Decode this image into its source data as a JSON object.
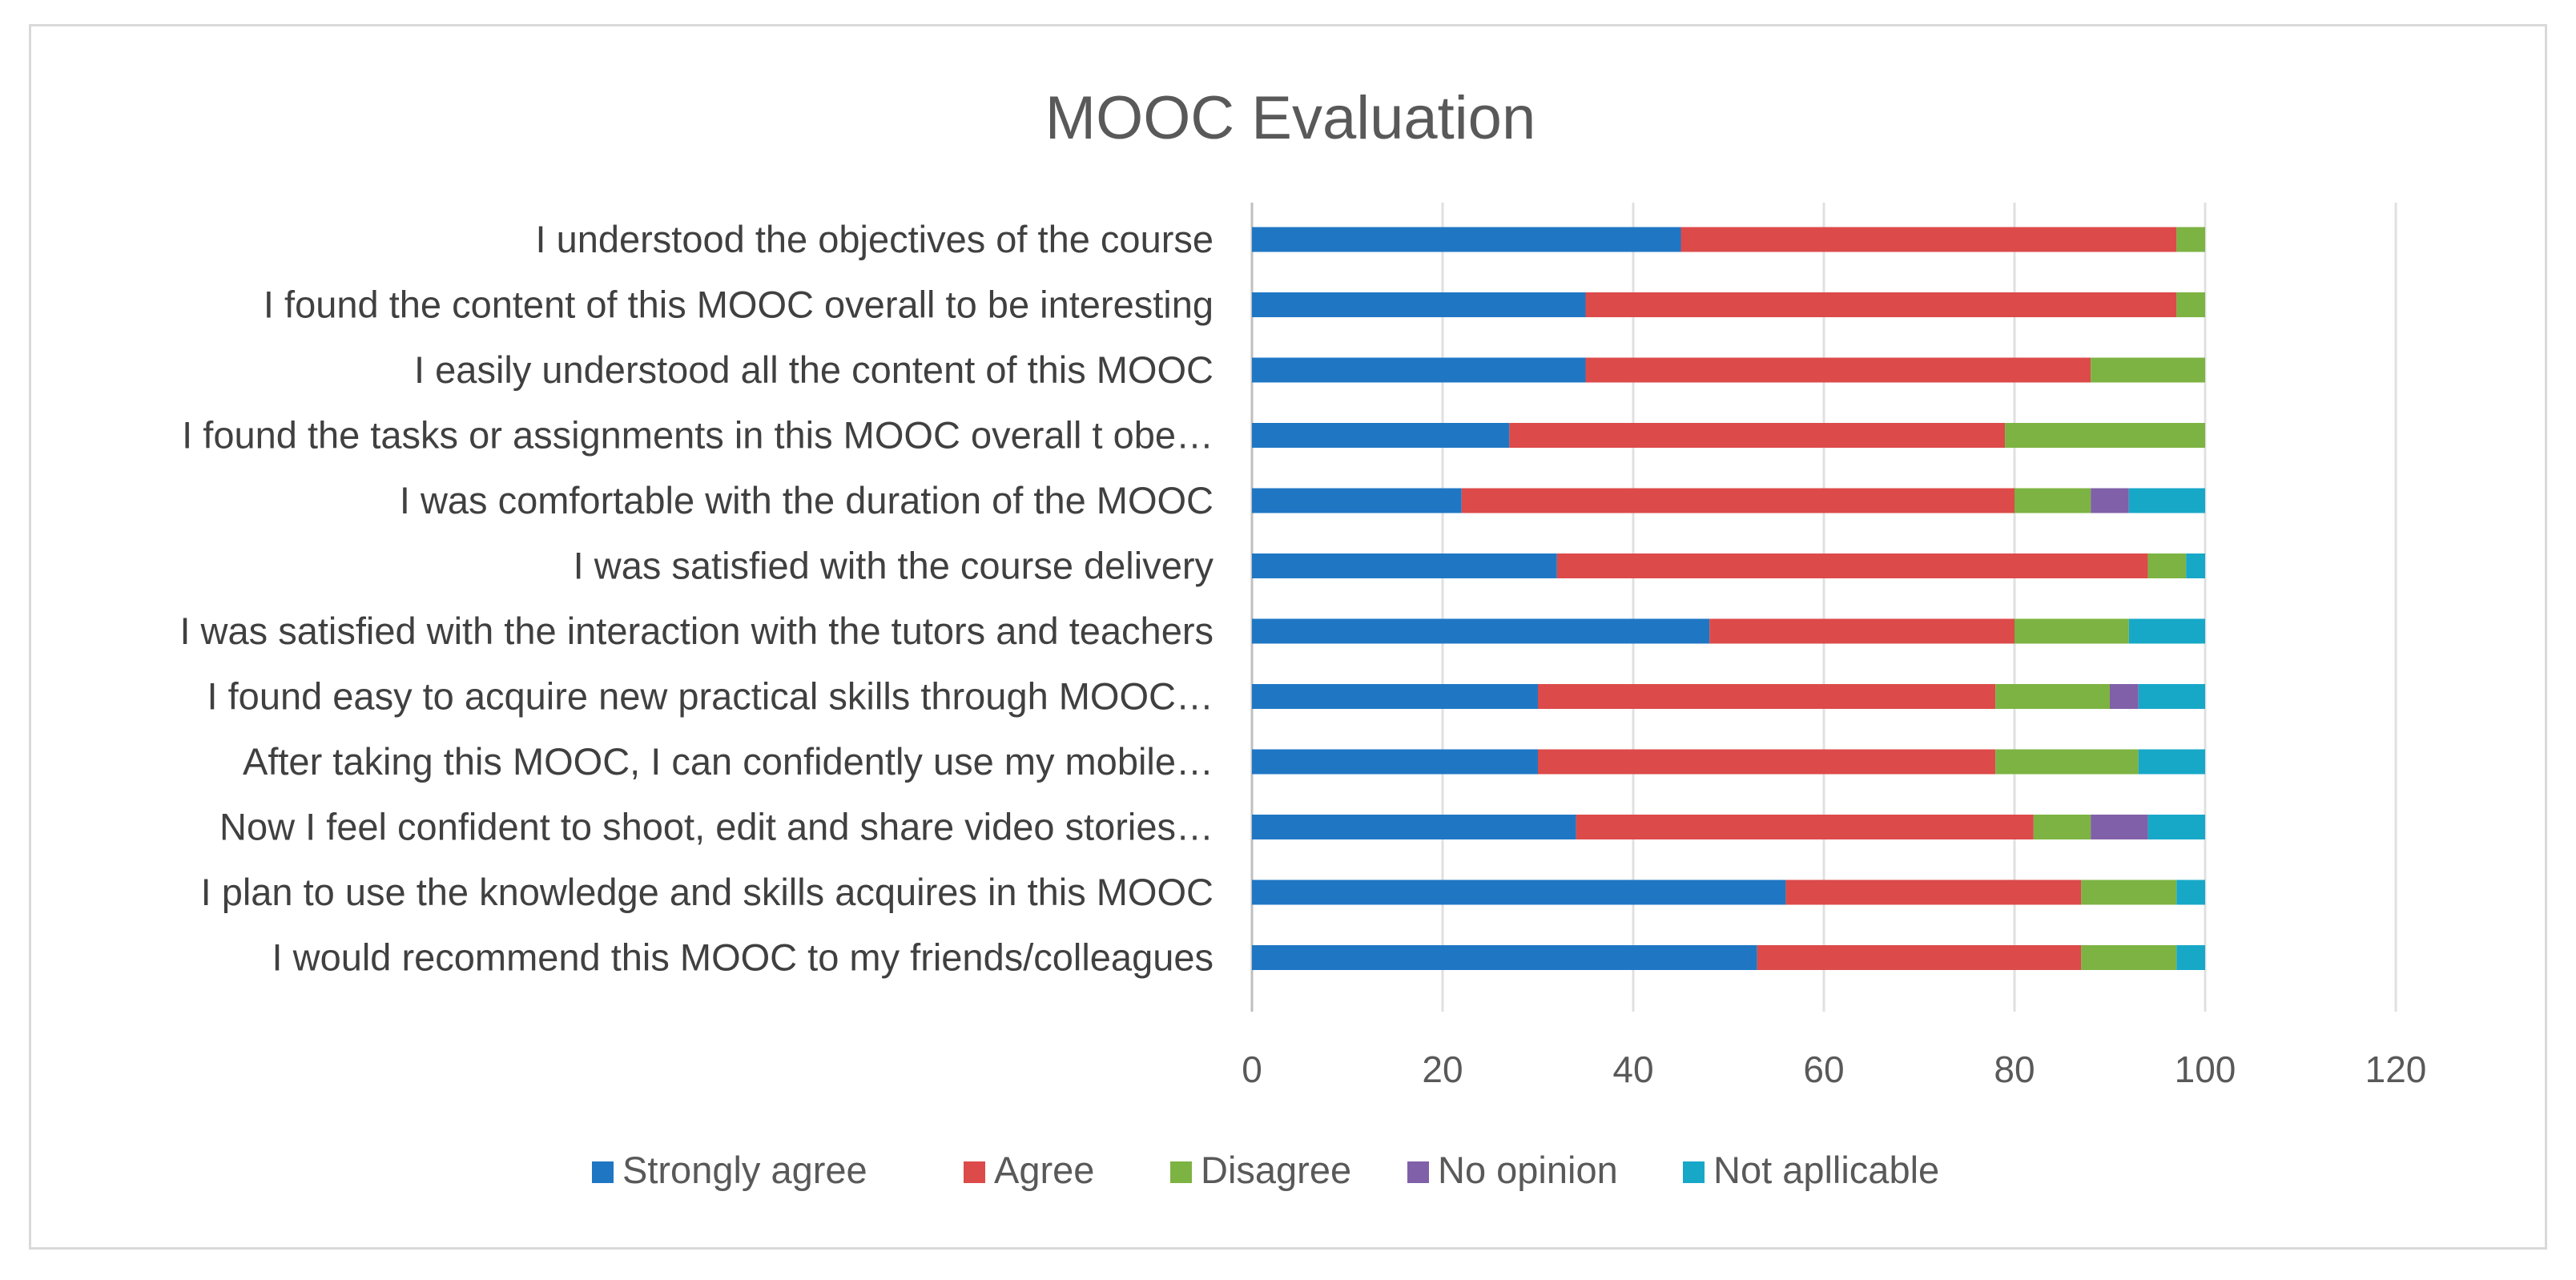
{
  "chart_data": {
    "type": "bar",
    "orientation": "horizontal",
    "stacked": true,
    "title": "MOOC Evaluation",
    "xlabel": "",
    "ylabel": "",
    "xlim": [
      0,
      120
    ],
    "x_ticks": [
      0,
      20,
      40,
      60,
      80,
      100,
      120
    ],
    "grid": true,
    "legend_position": "bottom",
    "categories": [
      "I understood the objectives of the course",
      "I found the content of this MOOC overall to be interesting",
      "I easily understood all the content of this MOOC",
      "I found the tasks or assignments in this MOOC overall t obe…",
      "I was comfortable with the duration of the MOOC",
      "I was satisfied with the course delivery",
      "I was satisfied with the interaction with the tutors and teachers",
      "I found easy to acquire new practical skills through MOOC…",
      "After taking this MOOC, I can confidently use my mobile…",
      "Now I feel confident to shoot, edit and share video stories…",
      "I plan to use the knowledge and skills acquires in this MOOC",
      "I would recommend this MOOC to my friends/colleagues"
    ],
    "series": [
      {
        "name": "Strongly agree",
        "color": "#1f77c4",
        "values": [
          45,
          35,
          35,
          27,
          22,
          32,
          48,
          30,
          30,
          34,
          56,
          53
        ]
      },
      {
        "name": "Agree",
        "color": "#dc4a4a",
        "values": [
          52,
          62,
          53,
          52,
          58,
          62,
          32,
          48,
          48,
          48,
          31,
          34
        ]
      },
      {
        "name": "Disagree",
        "color": "#7cb342",
        "values": [
          3,
          3,
          12,
          21,
          8,
          4,
          12,
          12,
          15,
          6,
          10,
          10
        ]
      },
      {
        "name": "No opinion",
        "color": "#8060a8",
        "values": [
          0,
          0,
          0,
          0,
          4,
          0,
          0,
          3,
          0,
          6,
          0,
          0
        ]
      },
      {
        "name": "Not apllicable",
        "color": "#17a8c8",
        "values": [
          0,
          0,
          0,
          0,
          8,
          2,
          8,
          7,
          7,
          6,
          3,
          3
        ]
      }
    ]
  }
}
